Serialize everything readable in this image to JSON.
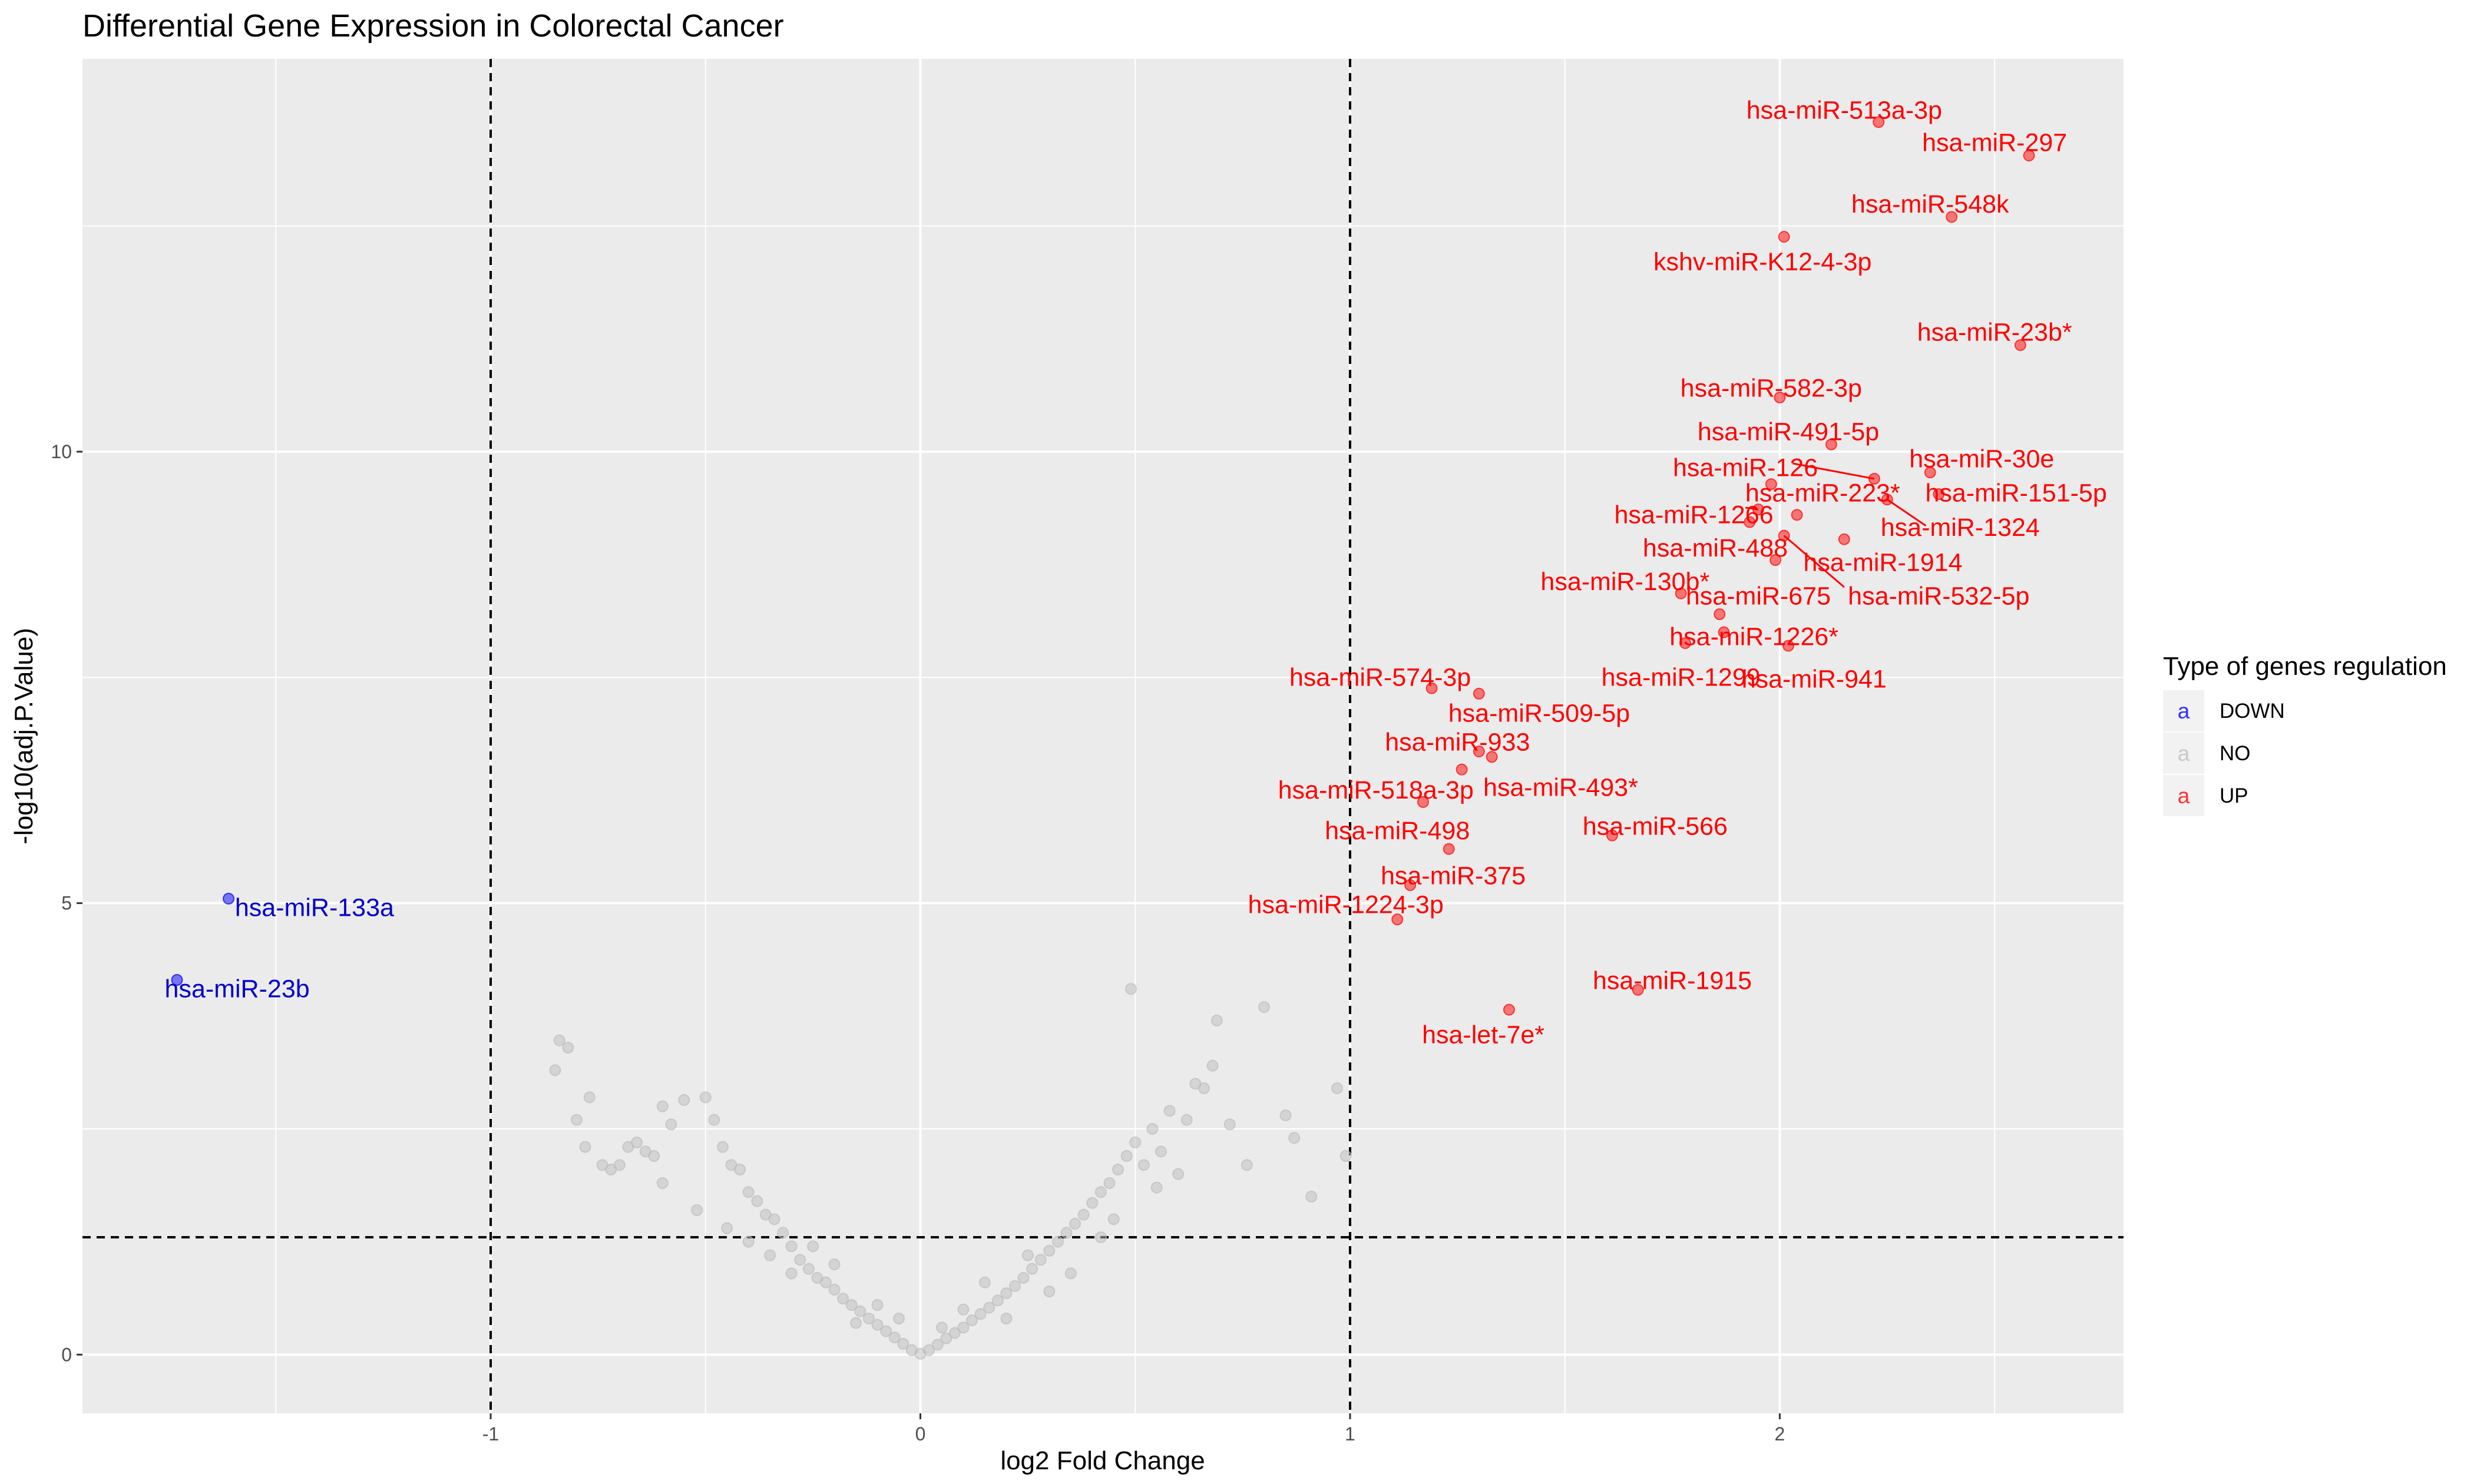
{
  "chart_data": {
    "type": "scatter",
    "title": "Differential Gene Expression in Colorectal Cancer",
    "xlabel": "log2 Fold Change",
    "ylabel": "-log10(adj.P.Value)",
    "xlim": [
      -1.95,
      2.8
    ],
    "ylim": [
      -0.65,
      14.35
    ],
    "x_ticks": [
      -1,
      0,
      1,
      2
    ],
    "x_tick_labels": [
      "-1",
      "0",
      "1",
      "2"
    ],
    "y_ticks": [
      0,
      5,
      10
    ],
    "y_tick_labels": [
      "0",
      "5",
      "10"
    ],
    "grid": true,
    "reference_lines": {
      "vertical": [
        -1,
        1
      ],
      "horizontal": [
        1.3
      ]
    },
    "legend": {
      "title": "Type of genes regulation",
      "position": "right",
      "entries": [
        {
          "label": "DOWN",
          "color": "#0000ff",
          "key_glyph": "a"
        },
        {
          "label": "NO",
          "color": "#bebebe",
          "key_glyph": "a"
        },
        {
          "label": "UP",
          "color": "#ff0000",
          "key_glyph": "a"
        }
      ]
    },
    "colors": {
      "DOWN": "#0000ff",
      "NO": "#bebebe",
      "UP": "#ff0000",
      "panel_bg": "#ebebeb",
      "grid": "#ffffff"
    },
    "series": [
      {
        "name": "DOWN",
        "points": [
          {
            "x": -1.61,
            "y": 5.05,
            "label": "hsa-miR-133a"
          },
          {
            "x": -1.73,
            "y": 4.15,
            "label": "hsa-miR-23b"
          }
        ]
      },
      {
        "name": "UP",
        "points": [
          {
            "x": 2.23,
            "y": 13.65,
            "label": "hsa-miR-513a-3p"
          },
          {
            "x": 2.58,
            "y": 13.28,
            "label": "hsa-miR-297"
          },
          {
            "x": 2.4,
            "y": 12.6,
            "label": "hsa-miR-548k"
          },
          {
            "x": 2.01,
            "y": 12.38,
            "label": "kshv-miR-K12-4-3p"
          },
          {
            "x": 2.56,
            "y": 11.18,
            "label": "hsa-miR-23b*"
          },
          {
            "x": 2.0,
            "y": 10.6,
            "label": "hsa-miR-582-3p"
          },
          {
            "x": 2.12,
            "y": 10.08,
            "label": "hsa-miR-491-5p"
          },
          {
            "x": 2.22,
            "y": 9.7,
            "label": "hsa-miR-126"
          },
          {
            "x": 2.35,
            "y": 9.77,
            "label": "hsa-miR-30e"
          },
          {
            "x": 2.37,
            "y": 9.53,
            "label": "hsa-miR-151-5p"
          },
          {
            "x": 2.25,
            "y": 9.47,
            "label": "hsa-miR-1324"
          },
          {
            "x": 1.98,
            "y": 9.64,
            "label": "hsa-miR-223*"
          },
          {
            "x": 2.04,
            "y": 9.3,
            "label": "hsa-miR-1266"
          },
          {
            "x": 1.93,
            "y": 9.22,
            "label": "hsa-miR-1266"
          },
          {
            "x": 1.95,
            "y": 9.36,
            "label": "hsa-miR-1266"
          },
          {
            "x": 2.01,
            "y": 9.07,
            "label": "hsa-miR-532-5p"
          },
          {
            "x": 1.99,
            "y": 8.8,
            "label": "hsa-miR-488"
          },
          {
            "x": 2.15,
            "y": 9.03,
            "label": "hsa-miR-1914"
          },
          {
            "x": 1.77,
            "y": 8.43,
            "label": "hsa-miR-130b*"
          },
          {
            "x": 1.86,
            "y": 8.2,
            "label": "hsa-miR-675"
          },
          {
            "x": 1.78,
            "y": 7.88,
            "label": "hsa-miR-1299"
          },
          {
            "x": 2.02,
            "y": 7.85,
            "label": "hsa-miR-941"
          },
          {
            "x": 1.87,
            "y": 8.0,
            "label": "hsa-miR-1226*"
          },
          {
            "x": 1.19,
            "y": 7.38,
            "label": "hsa-miR-574-3p"
          },
          {
            "x": 1.3,
            "y": 7.32,
            "label": "hsa-miR-509-5p"
          },
          {
            "x": 1.3,
            "y": 6.68,
            "label": "hsa-miR-933"
          },
          {
            "x": 1.33,
            "y": 6.62,
            "label": "hsa-miR-933"
          },
          {
            "x": 1.26,
            "y": 6.48,
            "label": "hsa-miR-493*"
          },
          {
            "x": 1.17,
            "y": 6.12,
            "label": "hsa-miR-518a-3p"
          },
          {
            "x": 1.61,
            "y": 5.75,
            "label": "hsa-miR-566"
          },
          {
            "x": 1.23,
            "y": 5.6,
            "label": "hsa-miR-498"
          },
          {
            "x": 1.14,
            "y": 5.2,
            "label": "hsa-miR-375"
          },
          {
            "x": 1.11,
            "y": 4.82,
            "label": "hsa-miR-1224-3p"
          },
          {
            "x": 1.67,
            "y": 4.04,
            "label": "hsa-miR-1915"
          },
          {
            "x": 1.37,
            "y": 3.82,
            "label": "hsa-let-7e*"
          }
        ]
      },
      {
        "name": "NO",
        "points": [
          {
            "x": -0.84,
            "y": 3.48
          },
          {
            "x": -0.82,
            "y": 3.4
          },
          {
            "x": -0.85,
            "y": 3.15
          },
          {
            "x": -0.77,
            "y": 2.85
          },
          {
            "x": -0.8,
            "y": 2.6
          },
          {
            "x": -0.78,
            "y": 2.3
          },
          {
            "x": -0.74,
            "y": 2.1
          },
          {
            "x": -0.72,
            "y": 2.05
          },
          {
            "x": -0.7,
            "y": 2.1
          },
          {
            "x": -0.68,
            "y": 2.3
          },
          {
            "x": -0.66,
            "y": 2.35
          },
          {
            "x": -0.64,
            "y": 2.25
          },
          {
            "x": -0.62,
            "y": 2.2
          },
          {
            "x": -0.6,
            "y": 2.75
          },
          {
            "x": -0.58,
            "y": 2.55
          },
          {
            "x": -0.55,
            "y": 2.82
          },
          {
            "x": -0.5,
            "y": 2.85
          },
          {
            "x": -0.48,
            "y": 2.6
          },
          {
            "x": -0.46,
            "y": 2.3
          },
          {
            "x": -0.44,
            "y": 2.1
          },
          {
            "x": -0.42,
            "y": 2.05
          },
          {
            "x": -0.4,
            "y": 1.8
          },
          {
            "x": -0.38,
            "y": 1.7
          },
          {
            "x": -0.36,
            "y": 1.55
          },
          {
            "x": -0.34,
            "y": 1.5
          },
          {
            "x": -0.32,
            "y": 1.35
          },
          {
            "x": -0.3,
            "y": 1.2
          },
          {
            "x": -0.28,
            "y": 1.05
          },
          {
            "x": -0.26,
            "y": 0.95
          },
          {
            "x": -0.24,
            "y": 0.85
          },
          {
            "x": -0.22,
            "y": 0.8
          },
          {
            "x": -0.2,
            "y": 0.72
          },
          {
            "x": -0.18,
            "y": 0.62
          },
          {
            "x": -0.16,
            "y": 0.55
          },
          {
            "x": -0.14,
            "y": 0.48
          },
          {
            "x": -0.12,
            "y": 0.4
          },
          {
            "x": -0.1,
            "y": 0.33
          },
          {
            "x": -0.08,
            "y": 0.26
          },
          {
            "x": -0.06,
            "y": 0.19
          },
          {
            "x": -0.04,
            "y": 0.12
          },
          {
            "x": -0.02,
            "y": 0.05
          },
          {
            "x": 0.0,
            "y": 0.01
          },
          {
            "x": 0.02,
            "y": 0.05
          },
          {
            "x": 0.04,
            "y": 0.11
          },
          {
            "x": 0.06,
            "y": 0.18
          },
          {
            "x": 0.08,
            "y": 0.24
          },
          {
            "x": 0.1,
            "y": 0.3
          },
          {
            "x": 0.12,
            "y": 0.38
          },
          {
            "x": 0.14,
            "y": 0.45
          },
          {
            "x": 0.16,
            "y": 0.52
          },
          {
            "x": 0.18,
            "y": 0.6
          },
          {
            "x": 0.2,
            "y": 0.68
          },
          {
            "x": 0.22,
            "y": 0.76
          },
          {
            "x": 0.24,
            "y": 0.85
          },
          {
            "x": 0.26,
            "y": 0.95
          },
          {
            "x": 0.28,
            "y": 1.05
          },
          {
            "x": 0.3,
            "y": 1.15
          },
          {
            "x": 0.32,
            "y": 1.25
          },
          {
            "x": 0.34,
            "y": 1.35
          },
          {
            "x": 0.36,
            "y": 1.45
          },
          {
            "x": 0.38,
            "y": 1.55
          },
          {
            "x": 0.4,
            "y": 1.68
          },
          {
            "x": 0.42,
            "y": 1.8
          },
          {
            "x": 0.44,
            "y": 1.9
          },
          {
            "x": 0.46,
            "y": 2.05
          },
          {
            "x": 0.48,
            "y": 2.2
          },
          {
            "x": 0.5,
            "y": 2.35
          },
          {
            "x": 0.52,
            "y": 2.1
          },
          {
            "x": 0.54,
            "y": 2.5
          },
          {
            "x": 0.56,
            "y": 2.25
          },
          {
            "x": 0.58,
            "y": 2.7
          },
          {
            "x": 0.6,
            "y": 2.0
          },
          {
            "x": 0.62,
            "y": 2.6
          },
          {
            "x": 0.64,
            "y": 3.0
          },
          {
            "x": 0.66,
            "y": 2.95
          },
          {
            "x": 0.68,
            "y": 3.2
          },
          {
            "x": 0.69,
            "y": 3.7
          },
          {
            "x": 0.72,
            "y": 2.55
          },
          {
            "x": 0.76,
            "y": 2.1
          },
          {
            "x": 0.8,
            "y": 3.85
          },
          {
            "x": 0.85,
            "y": 2.65
          },
          {
            "x": 0.87,
            "y": 2.4
          },
          {
            "x": 0.91,
            "y": 1.75
          },
          {
            "x": 0.97,
            "y": 2.95
          },
          {
            "x": 0.99,
            "y": 2.2
          },
          {
            "x": 0.49,
            "y": 4.05
          },
          {
            "x": -0.3,
            "y": 0.9
          },
          {
            "x": -0.35,
            "y": 1.1
          },
          {
            "x": -0.25,
            "y": 1.2
          },
          {
            "x": -0.45,
            "y": 1.4
          },
          {
            "x": -0.52,
            "y": 1.6
          },
          {
            "x": -0.2,
            "y": 1.0
          },
          {
            "x": 0.25,
            "y": 1.1
          },
          {
            "x": 0.35,
            "y": 0.9
          },
          {
            "x": 0.42,
            "y": 1.3
          },
          {
            "x": 0.3,
            "y": 0.7
          },
          {
            "x": 0.15,
            "y": 0.8
          },
          {
            "x": -0.15,
            "y": 0.35
          },
          {
            "x": -0.1,
            "y": 0.55
          },
          {
            "x": 0.1,
            "y": 0.5
          },
          {
            "x": 0.2,
            "y": 0.4
          },
          {
            "x": -0.05,
            "y": 0.4
          },
          {
            "x": 0.05,
            "y": 0.3
          },
          {
            "x": -0.4,
            "y": 1.25
          },
          {
            "x": 0.45,
            "y": 1.5
          },
          {
            "x": -0.6,
            "y": 1.9
          },
          {
            "x": 0.55,
            "y": 1.85
          }
        ]
      }
    ]
  }
}
